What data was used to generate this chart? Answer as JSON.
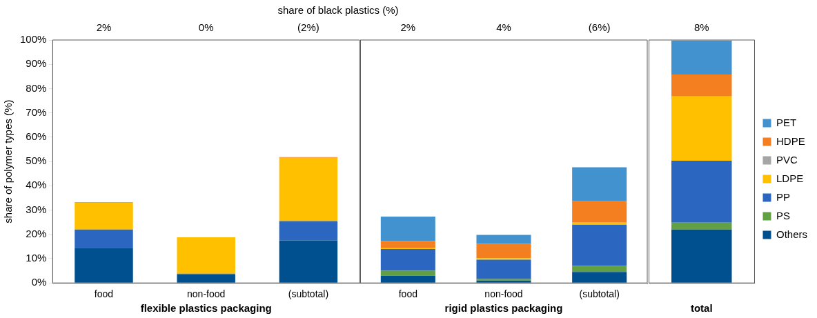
{
  "chart_data": [
    {
      "type": "bar",
      "title": "share of black plastics (%)",
      "ylabel": "share of polymer types (%)",
      "xlabel": "flexible plastics packaging",
      "stacked": true,
      "legend": false,
      "grid": false,
      "categories": [
        "food",
        "non-food",
        "(subtotal)"
      ],
      "ylim": [
        0,
        100
      ],
      "yticks": [
        {
          "value": 0,
          "label": "0%"
        },
        {
          "value": 10,
          "label": "10%"
        },
        {
          "value": 20,
          "label": "20%"
        },
        {
          "value": 30,
          "label": "30%"
        },
        {
          "value": 40,
          "label": "40%"
        },
        {
          "value": 50,
          "label": "50%"
        },
        {
          "value": 60,
          "label": "60%"
        },
        {
          "value": 70,
          "label": "70%"
        },
        {
          "value": 80,
          "label": "80%"
        },
        {
          "value": 90,
          "label": "90%"
        },
        {
          "value": 100,
          "label": "100%"
        }
      ],
      "annotations": [
        "2%",
        "0%",
        "(2%)"
      ],
      "series": [
        {
          "color": "#004f8f",
          "values": [
            14.5,
            3.5,
            17.5
          ]
        },
        {
          "color": "#62a044",
          "values": [
            0,
            0,
            0
          ]
        },
        {
          "color": "#2b67c0",
          "values": [
            7.5,
            0.3,
            8
          ]
        },
        {
          "color": "#ffc000",
          "values": [
            11,
            15,
            26
          ]
        },
        {
          "color": "#a5a5a5",
          "values": [
            0,
            0,
            0
          ]
        },
        {
          "color": "#f47f20",
          "values": [
            0.2,
            0,
            0.3
          ]
        },
        {
          "color": "#4392d0",
          "values": [
            0,
            0,
            0
          ]
        }
      ]
    },
    {
      "type": "bar",
      "xlabel": "rigid plastics packaging",
      "stacked": true,
      "legend": false,
      "grid": false,
      "tick_labels": "x",
      "categories": [
        "food",
        "non-food",
        "(subtotal)"
      ],
      "ylim": [
        0,
        100
      ],
      "annotations": [
        "2%",
        "4%",
        "(6%)"
      ],
      "series": [
        {
          "color": "#004f8f",
          "values": [
            3,
            1,
            4.5
          ]
        },
        {
          "color": "#62a044",
          "values": [
            2,
            0.6,
            2.5
          ]
        },
        {
          "color": "#2b67c0",
          "values": [
            9,
            8,
            17
          ]
        },
        {
          "color": "#ffc000",
          "values": [
            0.3,
            0.6,
            0.8
          ]
        },
        {
          "color": "#a5a5a5",
          "values": [
            0,
            0,
            0
          ]
        },
        {
          "color": "#f47f20",
          "values": [
            3,
            6,
            8.8
          ]
        },
        {
          "color": "#4392d0",
          "values": [
            10,
            3.6,
            14
          ]
        }
      ]
    },
    {
      "type": "bar",
      "xlabel": "total",
      "stacked": true,
      "legend": "right",
      "grid": false,
      "tick_labels": "x",
      "categories": [
        null
      ],
      "ylim": [
        0,
        100
      ],
      "annotations": [
        "8%"
      ],
      "series": [
        {
          "name": "Others",
          "color": "#004f8f",
          "values": [
            22
          ]
        },
        {
          "name": "PS",
          "color": "#62a044",
          "values": [
            2.8
          ]
        },
        {
          "name": "PP",
          "color": "#2b67c0",
          "values": [
            25.5
          ]
        },
        {
          "name": "LDPE",
          "color": "#ffc000",
          "values": [
            26.5
          ]
        },
        {
          "name": "PVC",
          "color": "#a5a5a5",
          "values": [
            null
          ]
        },
        {
          "name": "HDPE",
          "color": "#f47f20",
          "values": [
            9
          ]
        },
        {
          "name": "PET",
          "color": "#4392d0",
          "values": [
            14
          ]
        }
      ]
    }
  ]
}
